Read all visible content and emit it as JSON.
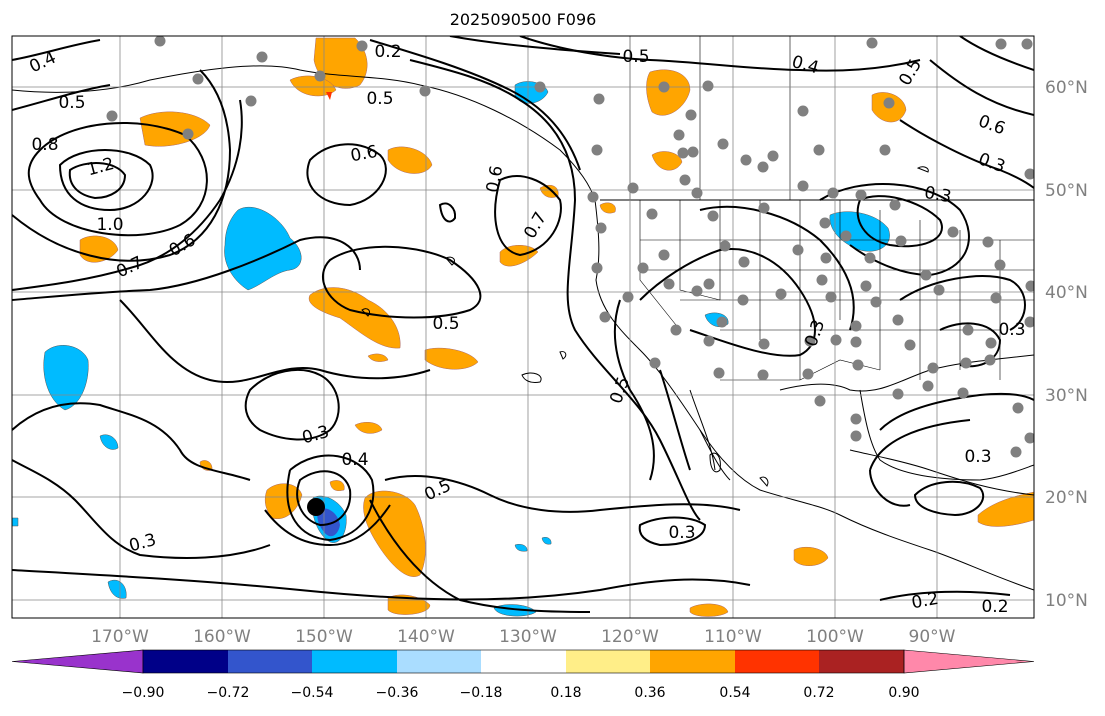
{
  "title": "2025090500 F096",
  "lon_labels": [
    "170°W",
    "160°W",
    "150°W",
    "140°W",
    "130°W",
    "120°W",
    "110°W",
    "100°W",
    "90°W"
  ],
  "lat_labels": [
    "60°N",
    "50°N",
    "40°N",
    "30°N",
    "20°N",
    "10°N"
  ],
  "contour_labels": [
    "0.4",
    "0.2",
    "0.5",
    "0.4",
    "0.5",
    "0.5",
    "0.6",
    "0.8",
    "1.2",
    "1.0",
    "0.6",
    "0.7",
    "0.6",
    "0.6",
    "0.7",
    "0.5",
    "0.3",
    "0.3",
    "0.3",
    "0.4",
    "0.5",
    "0.3",
    "0.3",
    "0.3",
    "0.3",
    "0.2",
    "0.2",
    "0.5",
    "0.3",
    "0.5"
  ],
  "colorbar": {
    "colors": [
      "#9933cc",
      "#000088",
      "#3355cc",
      "#00bbff",
      "#aaddff",
      "#ffffff",
      "#ffee88",
      "#ffa500",
      "#ff3300",
      "#aa2222",
      "#ff88aa"
    ],
    "ticks": [
      "−0.90",
      "−0.72",
      "−0.54",
      "−0.36",
      "−0.18",
      "0.18",
      "0.36",
      "0.54",
      "0.72",
      "0.90"
    ]
  },
  "marker": {
    "name": "storm-center"
  }
}
